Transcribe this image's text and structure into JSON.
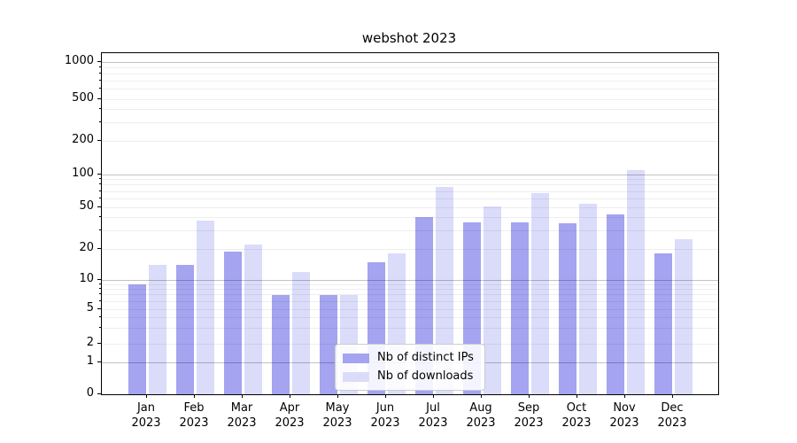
{
  "title": "webshot 2023",
  "chart_data": {
    "type": "bar",
    "title": "webshot 2023",
    "categories": [
      "Jan 2023",
      "Feb 2023",
      "Mar 2023",
      "Apr 2023",
      "May 2023",
      "Jun 2023",
      "Jul 2023",
      "Aug 2023",
      "Sep 2023",
      "Oct 2023",
      "Nov 2023",
      "Dec 2023"
    ],
    "series": [
      {
        "name": "Nb of distinct IPs",
        "color": "#a4a4f0",
        "values": [
          9,
          14,
          19,
          7,
          7,
          15,
          40,
          36,
          36,
          35,
          43,
          18
        ]
      },
      {
        "name": "Nb of downloads",
        "color": "#dadcfa",
        "values": [
          14,
          37,
          22,
          12,
          7,
          18,
          77,
          51,
          68,
          54,
          110,
          25
        ]
      }
    ],
    "xlabel": "",
    "ylabel": "",
    "yscale": "symlog",
    "y_ticks": [
      0,
      1,
      2,
      5,
      10,
      20,
      50,
      100,
      200,
      500,
      1000
    ],
    "ylim": [
      0,
      1200
    ],
    "grid": "horizontal, major and minor",
    "legend_position": "lower center"
  },
  "legend": {
    "items": [
      {
        "label": "Nb of distinct IPs",
        "color": "#a4a4f0"
      },
      {
        "label": "Nb of downloads",
        "color": "#dadcfa"
      }
    ]
  }
}
